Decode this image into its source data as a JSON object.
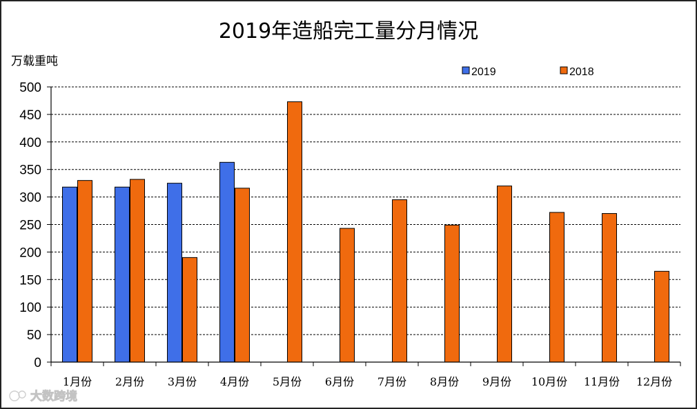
{
  "chart_data": {
    "type": "bar",
    "title": "2019年造船完工量分月情况",
    "ylabel": "万载重吨",
    "ylim": [
      0,
      500
    ],
    "yticks": [
      0,
      50,
      100,
      150,
      200,
      250,
      300,
      350,
      400,
      450,
      500
    ],
    "categories": [
      "1月份",
      "2月份",
      "3月份",
      "4月份",
      "5月份",
      "6月份",
      "7月份",
      "8月份",
      "9月份",
      "10月份",
      "11月份",
      "12月份"
    ],
    "series": [
      {
        "name": "2019",
        "color": "#3f6fe8",
        "values": [
          318,
          318,
          325,
          363,
          null,
          null,
          null,
          null,
          null,
          null,
          null,
          null
        ]
      },
      {
        "name": "2018",
        "color": "#f06a0e",
        "values": [
          330,
          332,
          190,
          316,
          473,
          243,
          295,
          249,
          320,
          272,
          270,
          165
        ]
      }
    ],
    "grid": "horizontal-dashed",
    "legend_position": "top-right"
  },
  "watermark": "大数跨境"
}
